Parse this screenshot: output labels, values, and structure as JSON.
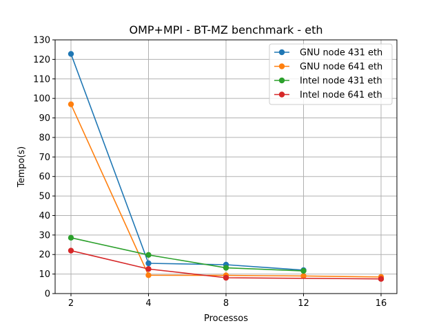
{
  "chart_data": {
    "type": "line",
    "title": "OMP+MPI - BT-MZ benchmark - eth",
    "xlabel": "Processos",
    "ylabel": "Tempo(s)",
    "x_categories": [
      "2",
      "4",
      "8",
      "12",
      "16"
    ],
    "ylim": [
      0,
      130
    ],
    "yticks": [
      0,
      10,
      20,
      30,
      40,
      50,
      60,
      70,
      80,
      90,
      100,
      110,
      120,
      130
    ],
    "grid": true,
    "legend_position": "top-right",
    "series": [
      {
        "name": "GNU node 431 eth",
        "color": "#1f77b4",
        "x": [
          "2",
          "4",
          "8",
          "12"
        ],
        "values": [
          122.8,
          15.5,
          14.8,
          12.0
        ]
      },
      {
        "name": "GNU node 641 eth",
        "color": "#ff7f0e",
        "x": [
          "2",
          "4",
          "8",
          "12",
          "16"
        ],
        "values": [
          97.0,
          9.4,
          9.3,
          9.0,
          8.5
        ]
      },
      {
        "name": "Intel node 431 eth",
        "color": "#2ca02c",
        "x": [
          "2",
          "4",
          "8",
          "12"
        ],
        "values": [
          28.6,
          19.8,
          13.2,
          11.6
        ]
      },
      {
        "name": "Intel node 641 eth",
        "color": "#d62728",
        "x": [
          "2",
          "4",
          "8",
          "16"
        ],
        "values": [
          22.0,
          12.6,
          8.1,
          7.5
        ]
      }
    ]
  }
}
